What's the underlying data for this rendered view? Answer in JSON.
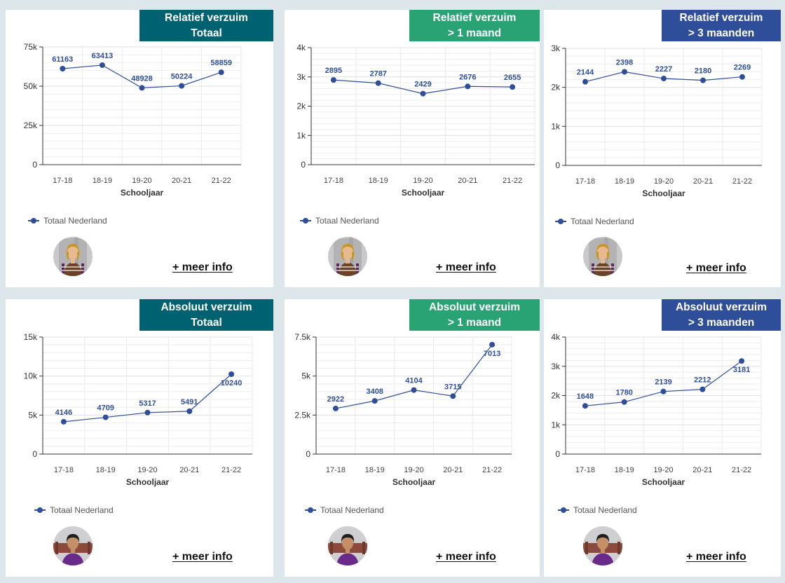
{
  "colors": {
    "totaal": "#006270",
    "maand1": "#2aa374",
    "maand3": "#2f4e9a",
    "line": "#2f4e9a"
  },
  "more_label": "+ meer info",
  "chart_data": [
    {
      "type": "line",
      "header": [
        "Relatief verzuim",
        "Totaal"
      ],
      "header_color": "totaal",
      "categories": [
        "17-18",
        "18-19",
        "19-20",
        "20-21",
        "21-22"
      ],
      "series": [
        {
          "name": "Totaal Nederland",
          "values": [
            61163,
            63413,
            48928,
            50224,
            58859
          ]
        }
      ],
      "xlabel": "Schooljaar",
      "ylim": [
        0,
        75000
      ],
      "yticks": [
        0,
        25000,
        50000,
        75000
      ],
      "ytick_labels": [
        "0",
        "25k",
        "50k",
        "75k"
      ],
      "avatar": "student-girl-icon"
    },
    {
      "type": "line",
      "header": [
        "Relatief verzuim",
        "> 1 maand"
      ],
      "header_color": "maand1",
      "categories": [
        "17-18",
        "18-19",
        "19-20",
        "20-21",
        "21-22"
      ],
      "series": [
        {
          "name": "Totaal Nederland",
          "values": [
            2895,
            2787,
            2429,
            2676,
            2655
          ]
        }
      ],
      "xlabel": "Schooljaar",
      "ylim": [
        0,
        4000
      ],
      "yticks": [
        0,
        1000,
        2000,
        3000,
        4000
      ],
      "ytick_labels": [
        "0",
        "1k",
        "2k",
        "3k",
        "4k"
      ],
      "avatar": "student-girl-icon"
    },
    {
      "type": "line",
      "header": [
        "Relatief verzuim",
        "> 3 maanden"
      ],
      "header_color": "maand3",
      "categories": [
        "17-18",
        "18-19",
        "19-20",
        "20-21",
        "21-22"
      ],
      "series": [
        {
          "name": "Totaal Nederland",
          "values": [
            2144,
            2398,
            2227,
            2180,
            2269
          ]
        }
      ],
      "xlabel": "Schooljaar",
      "ylim": [
        0,
        3000
      ],
      "yticks": [
        0,
        1000,
        2000,
        3000
      ],
      "ytick_labels": [
        "0",
        "1k",
        "2k",
        "3k"
      ],
      "avatar": "student-girl-icon"
    },
    {
      "type": "line",
      "header": [
        "Absoluut verzuim",
        "Totaal"
      ],
      "header_color": "totaal",
      "categories": [
        "17-18",
        "18-19",
        "19-20",
        "20-21",
        "21-22"
      ],
      "series": [
        {
          "name": "Totaal Nederland",
          "values": [
            4146,
            4709,
            5317,
            5491,
            10240
          ]
        }
      ],
      "xlabel": "Schooljaar",
      "ylim": [
        0,
        15000
      ],
      "yticks": [
        0,
        5000,
        10000,
        15000
      ],
      "ytick_labels": [
        "0",
        "5k",
        "10k",
        "15k"
      ],
      "avatar": "student-boy-icon"
    },
    {
      "type": "line",
      "header": [
        "Absoluut verzuim",
        "> 1 maand"
      ],
      "header_color": "maand1",
      "categories": [
        "17-18",
        "18-19",
        "19-20",
        "20-21",
        "21-22"
      ],
      "series": [
        {
          "name": "Totaal Nederland",
          "values": [
            2922,
            3408,
            4104,
            3715,
            7013
          ]
        }
      ],
      "xlabel": "Schooljaar",
      "ylim": [
        0,
        7500
      ],
      "yticks": [
        0,
        2500,
        5000,
        7500
      ],
      "ytick_labels": [
        "0",
        "2.5k",
        "5k",
        "7.5k"
      ],
      "avatar": "student-boy-icon"
    },
    {
      "type": "line",
      "header": [
        "Absoluut verzuim",
        "> 3 maanden"
      ],
      "header_color": "maand3",
      "categories": [
        "17-18",
        "18-19",
        "19-20",
        "20-21",
        "21-22"
      ],
      "series": [
        {
          "name": "Totaal Nederland",
          "values": [
            1648,
            1780,
            2139,
            2212,
            3181
          ]
        }
      ],
      "xlabel": "Schooljaar",
      "ylim": [
        0,
        4000
      ],
      "yticks": [
        0,
        1000,
        2000,
        3000,
        4000
      ],
      "ytick_labels": [
        "0",
        "1k",
        "2k",
        "3k",
        "4k"
      ],
      "avatar": "student-boy-icon"
    }
  ]
}
